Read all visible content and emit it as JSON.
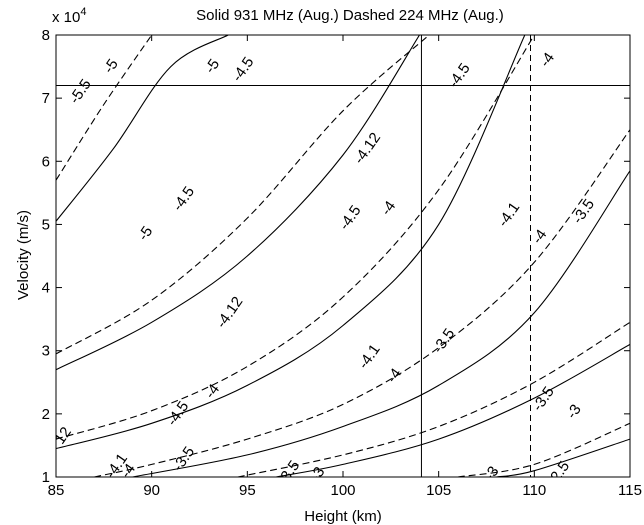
{
  "chart_data": {
    "type": "line",
    "title": "Solid 931 MHz (Aug.) Dashed 224 MHz (Aug.)",
    "xlabel": "Height (km)",
    "ylabel": "Velocity (m/s)",
    "yexponent_label": "x 10",
    "yexponent_power": "4",
    "xlim": [
      85,
      115
    ],
    "ylim": [
      10000,
      80000
    ],
    "xticks": [
      85,
      90,
      95,
      100,
      105,
      110,
      115
    ],
    "yticks": [
      1,
      2,
      3,
      4,
      5,
      6,
      7,
      8
    ],
    "grid": false,
    "reference_lines": [
      {
        "orientation": "horizontal",
        "value": 72000,
        "style": "solid"
      },
      {
        "orientation": "vertical",
        "value": 104.1,
        "style": "solid"
      },
      {
        "orientation": "vertical",
        "value": 109.8,
        "style": "dashed"
      }
    ],
    "series": [
      {
        "style": "solid",
        "x": [
          85,
          88,
          91,
          94
        ],
        "y": [
          50500,
          62000,
          75000,
          80000
        ]
      },
      {
        "style": "solid",
        "x": [
          85,
          90,
          95,
          100,
          104
        ],
        "y": [
          27000,
          34500,
          45000,
          61000,
          80000
        ]
      },
      {
        "style": "solid",
        "x": [
          85,
          90,
          95,
          100,
          105,
          109.5
        ],
        "y": [
          14500,
          18500,
          24500,
          34000,
          50000,
          80000
        ]
      },
      {
        "style": "solid",
        "x": [
          89,
          95,
          100,
          105,
          110,
          115
        ],
        "y": [
          10000,
          13500,
          18000,
          24500,
          36000,
          58500
        ]
      },
      {
        "style": "solid",
        "x": [
          96.5,
          100,
          105,
          110,
          115
        ],
        "y": [
          10000,
          12000,
          16000,
          22500,
          31000
        ]
      },
      {
        "style": "solid",
        "x": [
          108,
          110,
          115
        ],
        "y": [
          10000,
          11000,
          16000
        ]
      },
      {
        "style": "dashed",
        "x": [
          85,
          87.5,
          90
        ],
        "y": [
          57000,
          69000,
          80000
        ]
      },
      {
        "style": "dashed",
        "x": [
          85,
          90,
          95,
          100,
          104.5
        ],
        "y": [
          29500,
          38000,
          51000,
          68000,
          80000
        ]
      },
      {
        "style": "dashed",
        "x": [
          85,
          90,
          95,
          100,
          105,
          110
        ],
        "y": [
          16000,
          20500,
          27500,
          38500,
          55500,
          80000
        ]
      },
      {
        "style": "dashed",
        "x": [
          87,
          90,
          95,
          100,
          105,
          110,
          115
        ],
        "y": [
          10000,
          12000,
          16000,
          21500,
          30500,
          44000,
          65000
        ]
      },
      {
        "style": "dashed",
        "x": [
          94.5,
          100,
          105,
          110,
          115
        ],
        "y": [
          10000,
          13500,
          18000,
          25000,
          34500
        ]
      },
      {
        "style": "dashed",
        "x": [
          106,
          110,
          115
        ],
        "y": [
          10000,
          12000,
          18500
        ]
      }
    ],
    "contour_labels": [
      {
        "text": "-5.5",
        "x": 86.3,
        "y": 71000
      },
      {
        "text": "-5",
        "x": 87.9,
        "y": 75000
      },
      {
        "text": "-5",
        "x": 93.2,
        "y": 75000
      },
      {
        "text": "-4.5",
        "x": 94.8,
        "y": 74500
      },
      {
        "text": "-4.5",
        "x": 106.1,
        "y": 73500
      },
      {
        "text": "-4",
        "x": 110.7,
        "y": 76000
      },
      {
        "text": "-4.12",
        "x": 101.3,
        "y": 62000
      },
      {
        "text": "-5",
        "x": 89.7,
        "y": 48500
      },
      {
        "text": "-4.5",
        "x": 91.7,
        "y": 54000
      },
      {
        "text": "-4.5",
        "x": 100.4,
        "y": 51000
      },
      {
        "text": "-4",
        "x": 102.4,
        "y": 52500
      },
      {
        "text": "-4.1",
        "x": 108.7,
        "y": 51500
      },
      {
        "text": "-4",
        "x": 110.3,
        "y": 48000
      },
      {
        "text": "-3.5",
        "x": 112.6,
        "y": 52000
      },
      {
        "text": "-4.12",
        "x": 94.1,
        "y": 36000
      },
      {
        "text": "-4.5",
        "x": 91.4,
        "y": 20000
      },
      {
        "text": "-4",
        "x": 93.2,
        "y": 23500
      },
      {
        "text": "-4.1",
        "x": 101.4,
        "y": 29000
      },
      {
        "text": "-4",
        "x": 102.7,
        "y": 26000
      },
      {
        "text": "-3.5",
        "x": 105.3,
        "y": 31500
      },
      {
        "text": "12",
        "x": 85.4,
        "y": 16500
      },
      {
        "text": "-4.1",
        "x": 88.2,
        "y": 11700
      },
      {
        "text": "-4",
        "x": 88.8,
        "y": 10900
      },
      {
        "text": "-3.5",
        "x": 91.7,
        "y": 12800
      },
      {
        "text": "-3.5",
        "x": 97.2,
        "y": 10600
      },
      {
        "text": "-3",
        "x": 98.7,
        "y": 10400
      },
      {
        "text": "-3.5",
        "x": 110.5,
        "y": 22300
      },
      {
        "text": "-3",
        "x": 112.1,
        "y": 20300
      },
      {
        "text": "-3",
        "x": 107.8,
        "y": 10500
      },
      {
        "text": "-2.5",
        "x": 111.3,
        "y": 10500
      }
    ]
  }
}
